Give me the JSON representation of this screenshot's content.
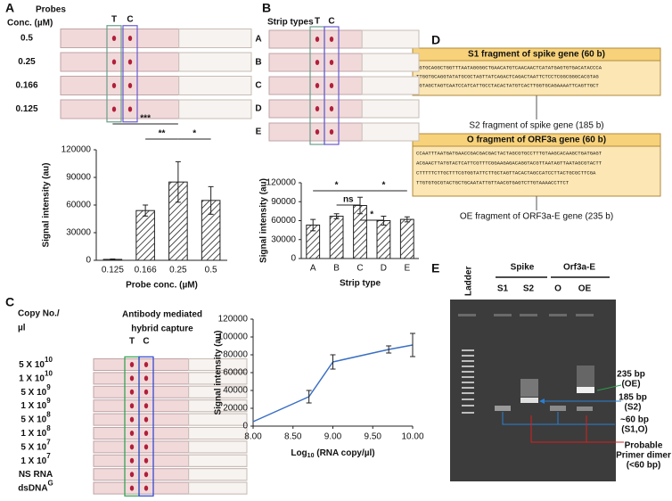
{
  "panel_a": {
    "label": "A",
    "header": "Probes",
    "header2": "Conc. (µM)",
    "t_label": "T",
    "c_label": "C",
    "strip_labels": [
      "0.5",
      "0.25",
      "0.166",
      "0.125"
    ],
    "chart_data": {
      "type": "bar",
      "categories": [
        "0.125",
        "0.166",
        "0.25",
        "0.5"
      ],
      "values": [
        1000,
        54000,
        85000,
        65000
      ],
      "errors": [
        500,
        6000,
        22000,
        15000
      ],
      "ylim": [
        0,
        120000
      ],
      "yticks": [
        0,
        30000,
        60000,
        90000,
        120000
      ],
      "y_label": "Signal intensity (au)",
      "x_label": "Probe conc. (µM)",
      "annotations": [
        "***",
        "**",
        "*"
      ],
      "color": "#222"
    }
  },
  "panel_b": {
    "label": "B",
    "header": "Strip types",
    "t_label": "T",
    "c_label": "C",
    "strip_labels": [
      "A",
      "B",
      "C",
      "D",
      "E"
    ],
    "chart_data": {
      "type": "bar",
      "categories": [
        "A",
        "B",
        "C",
        "D",
        "E"
      ],
      "values": [
        53000,
        67000,
        84000,
        60000,
        62000
      ],
      "errors": [
        9000,
        4000,
        13000,
        7000,
        4000
      ],
      "ylim": [
        0,
        120000
      ],
      "yticks": [
        0,
        30000,
        60000,
        90000,
        120000
      ],
      "y_label": "Signal intensity (au)",
      "x_label": "Strip type",
      "annotations": [
        "*",
        "ns",
        "*",
        "*"
      ],
      "color": "#222"
    }
  },
  "panel_c": {
    "label": "C",
    "header": "Copy  No./",
    "header2": "µl",
    "title": "Antibody mediated",
    "title2": "hybrid capture",
    "t_label": "T",
    "c_label": "C",
    "strip_labels": [
      {
        "base": "5 X 10",
        "sup": "10"
      },
      {
        "base": "1 X 10",
        "sup": "10"
      },
      {
        "base": "5 X 10",
        "sup": "9"
      },
      {
        "base": "1 X 10",
        "sup": "9"
      },
      {
        "base": "5 X 10",
        "sup": "8"
      },
      {
        "base": "1 X 10",
        "sup": "8"
      },
      {
        "base": "5 X 10",
        "sup": "7"
      },
      {
        "base": "1 X 10",
        "sup": "7"
      },
      "NS RNA",
      {
        "base": "dsDNA",
        "sup": "G"
      }
    ],
    "chart_data": {
      "type": "line",
      "x": [
        8.0,
        8.7,
        9.0,
        9.7,
        10.0
      ],
      "values": [
        5000,
        33000,
        72000,
        86000,
        91000
      ],
      "errors": [
        null,
        7000,
        8000,
        4000,
        13000
      ],
      "xlim": [
        8.0,
        10.0
      ],
      "xticks": [
        {
          "value": 8.0,
          "label": "8.00"
        },
        {
          "value": 8.5,
          "label": "8.50"
        },
        {
          "value": 9.0,
          "label": "9.00"
        },
        {
          "value": 9.5,
          "label": "9.50"
        },
        {
          "value": 10.0,
          "label": "10.00"
        }
      ],
      "ylim": [
        0,
        120000
      ],
      "yticks": [
        0,
        20000,
        40000,
        60000,
        80000,
        100000,
        120000
      ],
      "y_label": "Signal intensity (au)",
      "x_label": {
        "base": "Log",
        "sub": "10",
        "rest": " (RNA copy/µl)"
      },
      "color": "#3a6fc4"
    }
  },
  "panel_d": {
    "label": "D",
    "s1_title": "S1 fragment of spike gene (60 b)",
    "s1_seq": [
      "CGTGCAGGCTGGTTTAATAGGGGCTGAACATGTCAACAACTCATATGAGTGTGACATACCCA",
      "TTGGTGCAGGTATATGCGCTAGTTATCAGACTCAGACTAATTCTCCTCGGCGGGCACGTAG",
      "TGTAGCTAGTCAATCCATCATTGCCTACACTATGTCACTTGGTGCAGAAAATTCAGTTGCT"
    ],
    "s2_title": "S2 fragment of spike gene (185 b)",
    "o_title": "O fragment of ORF3a gene (60 b)",
    "o_seq": [
      "CCAATTTAATGATGAACCGACGACGACTACTAGCGTGCCTTTGTAAGCACAAGCTGATGAGT",
      "ACGAACTTATGTACTCATTCGTTTCGGAAGAGACAGGTACGTTAATAGTTAATAGCGTACTT",
      "CTTTTTCTTGCTTTCGTGGTATTCTTGCTAGTTACACTAGCCATCCTTACTGCGCTTCGA",
      "TTGTGTGCGTACTGCTGCAATATTGTTAACGTGAGTCTTGTAAAACCTTCT"
    ],
    "oe_title": "OE fragment of ORF3a-E gene (235 b)"
  },
  "panel_e": {
    "label": "E",
    "ladder": "Ladder",
    "spike": "Spike",
    "orf": "Orf3a-E",
    "lanes": [
      "S1",
      "S2",
      "O",
      "OE"
    ],
    "band_235": [
      "235 bp",
      "(OE)"
    ],
    "band_185": [
      "185 bp",
      "(S2)"
    ],
    "band_60": [
      "~60 bp",
      "(S1,O)"
    ],
    "dimer": [
      "Probable",
      "Primer dimer",
      "(<60 bp)"
    ]
  }
}
